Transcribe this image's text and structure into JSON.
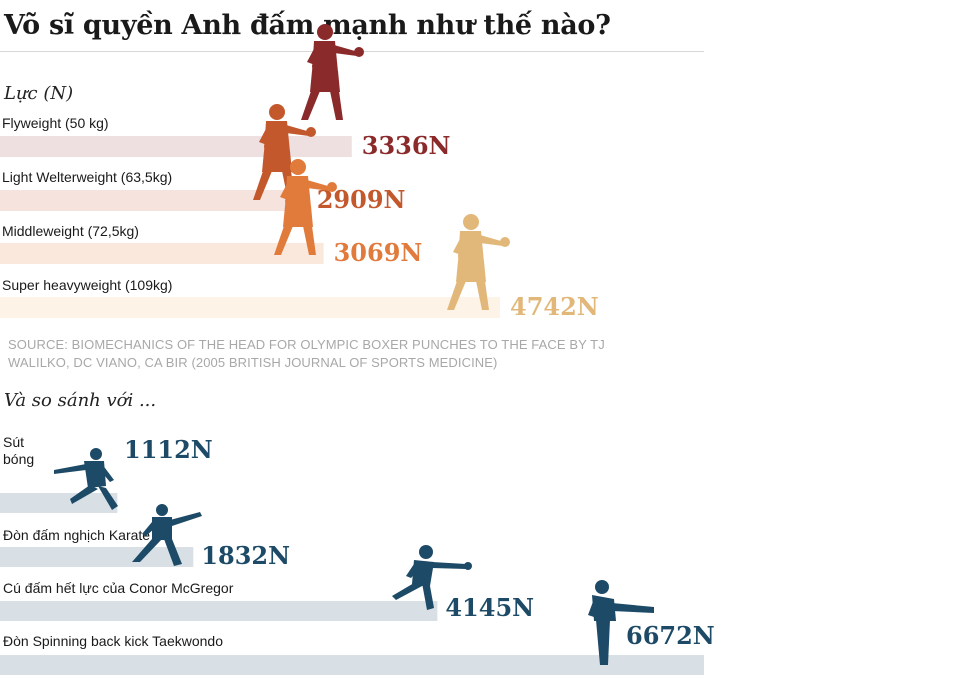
{
  "title": "Võ sĩ quyền Anh đấm mạnh như thế nào?",
  "source": "SOURCE: BIOMECHANICS OF THE HEAD FOR OLYMPIC BOXER PUNCHES TO THE FACE BY TJ WALILKO, DC VIANO, CA BIR (2005 BRITISH JOURNAL OF SPORTS MEDICINE)",
  "icons": {
    "boxer": "boxer-silhouette-icon",
    "soccer": "soccer-kick-silhouette-icon",
    "karate": "karate-punch-silhouette-icon",
    "mma": "mma-punch-silhouette-icon",
    "taekwondo": "taekwondo-kick-silhouette-icon"
  },
  "chart_data": [
    {
      "type": "bar",
      "orientation": "horizontal",
      "title": "Lực (N)",
      "unit": "N",
      "categories": [
        "Flyweight (50 kg)",
        "Light Welterweight (63,5kg)",
        "Middleweight (72,5kg)",
        "Super heavyweight (109kg)"
      ],
      "values": [
        3336,
        2909,
        3069,
        4742
      ],
      "value_labels": [
        "3336N",
        "2909N",
        "3069N",
        "4742N"
      ],
      "colors": [
        "#8b2a2a",
        "#c4582d",
        "#e07b3c",
        "#e2b87a"
      ],
      "bar_colors": [
        "#eedfe0",
        "#f7e3dd",
        "#fae8dc",
        "#fdf3e7"
      ],
      "grid": false,
      "legend": "none"
    },
    {
      "type": "bar",
      "orientation": "horizontal",
      "title": "Và so sánh với ...",
      "unit": "N",
      "categories": [
        "Sút\nbóng",
        "Đòn đấm nghịch Karate",
        "Cú đấm hết lực của Conor McGregor",
        "Đòn Spinning back kick  Taekwondo"
      ],
      "values": [
        1112,
        1832,
        4145,
        6672
      ],
      "value_labels": [
        "1112N",
        "1832N",
        "4145N",
        "6672N"
      ],
      "color": "#1d4a66",
      "bar_color": "#d8e0e6",
      "grid": false,
      "legend": "none"
    }
  ]
}
